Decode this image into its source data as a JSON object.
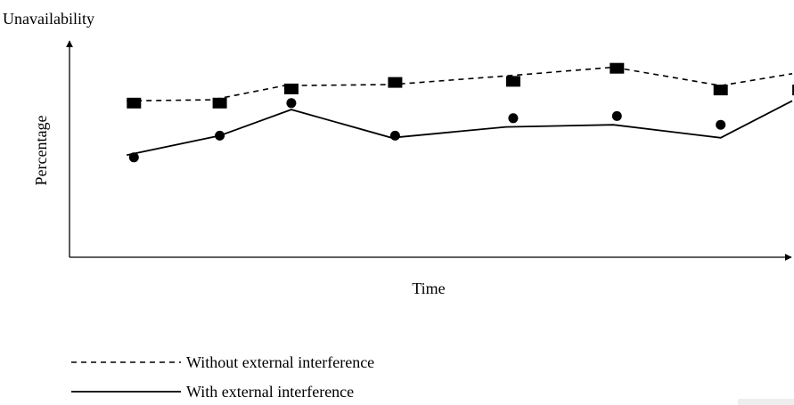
{
  "chart_data": {
    "type": "line",
    "title": "Unavailability",
    "xlabel": "Time",
    "ylabel": "Percentage",
    "ticks": "none",
    "grid": false,
    "ylim": [
      0,
      100
    ],
    "xlim": [
      0,
      100
    ],
    "legend_position": "bottom-left",
    "series": [
      {
        "name": "Without external interference",
        "style": "dashed",
        "marker": "square",
        "line_x": [
          8,
          20,
          30,
          45,
          61,
          76,
          91,
          101
        ],
        "line_y": [
          72,
          72.5,
          79,
          79.5,
          83.5,
          87.5,
          79,
          84.5
        ],
        "marker_x": [
          9,
          21,
          31,
          45.5,
          62,
          76.5,
          91,
          102
        ],
        "marker_y": [
          71,
          71,
          77.5,
          80.5,
          81,
          87,
          77,
          77
        ]
      },
      {
        "name": "With external interference",
        "style": "solid",
        "marker": "circle",
        "line_x": [
          8,
          21,
          31,
          45,
          61,
          76,
          91,
          101
        ],
        "line_y": [
          47,
          56,
          68,
          55,
          60,
          61,
          55,
          72
        ],
        "marker_x": [
          9,
          21,
          31,
          45.5,
          62,
          76.5,
          91,
          102
        ],
        "marker_y": [
          46,
          56,
          71,
          56,
          64,
          65,
          61,
          72
        ]
      }
    ]
  }
}
